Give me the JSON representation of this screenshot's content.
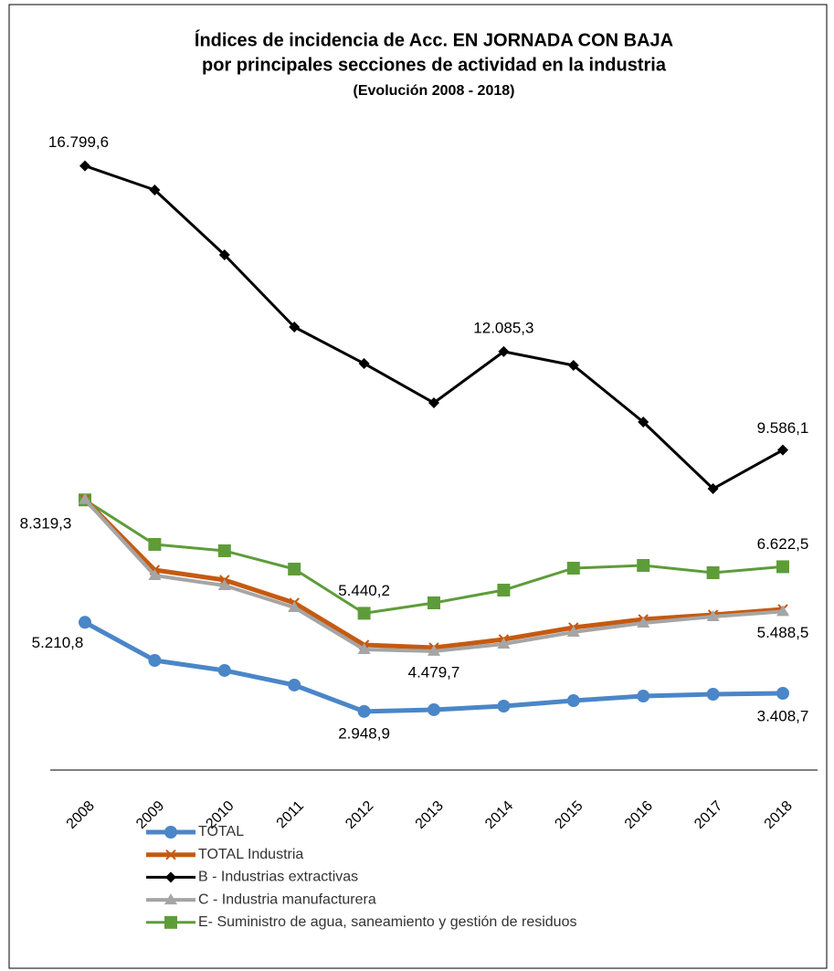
{
  "chart_data": {
    "type": "line",
    "title": "Índices de incidencia de Acc. EN JORNADA CON BAJA",
    "subtitle": "por principales secciones de actividad en la industria",
    "subtitle2": "(Evolución 2008 - 2018)",
    "categories": [
      "2008",
      "2009",
      "2010",
      "2011",
      "2012",
      "2013",
      "2014",
      "2015",
      "2016",
      "2017",
      "2018"
    ],
    "series": [
      {
        "name": "TOTAL",
        "color": "#4a86c8",
        "marker": "circle",
        "values": [
          5210.8,
          4244,
          3989,
          3618,
          2948.9,
          2992,
          3084,
          3223,
          3339,
          3386,
          3408.7
        ],
        "value_labels": [
          "5.210,8",
          null,
          null,
          null,
          "2.948,9",
          null,
          null,
          null,
          null,
          null,
          "3.408,7"
        ]
      },
      {
        "name": "TOTAL Industria",
        "color": "#c55a11",
        "marker": "x",
        "values": [
          8330,
          6540,
          6285,
          5705,
          4638,
          4568,
          4777,
          5079,
          5287,
          5403,
          5542
        ]
      },
      {
        "name": "B - Industrias extractivas",
        "color": "#000000",
        "marker": "diamond",
        "values": [
          16799.6,
          16187,
          14540,
          12708,
          11781,
          10783,
          12085.3,
          11734,
          10296,
          8603,
          9586.1
        ],
        "value_labels": [
          "16.799,6",
          null,
          null,
          null,
          null,
          null,
          "12.085,3",
          null,
          null,
          null,
          "9.586,1"
        ]
      },
      {
        "name": "C - Industria manufacturera",
        "color": "#a5a5a5",
        "marker": "triangle",
        "values": [
          8330,
          6400,
          6145,
          5589,
          4522,
          4479.7,
          4661,
          4963,
          5195,
          5357,
          5488.5
        ],
        "value_labels": [
          null,
          null,
          null,
          null,
          null,
          "4.479,7",
          null,
          null,
          null,
          null,
          "5.488,5"
        ]
      },
      {
        "name": "E- Suministro de agua, saneamiento y gestión de residuos",
        "color": "#5e9c3a",
        "marker": "square",
        "values": [
          8319.3,
          7189,
          7027,
          6563,
          5440.2,
          5705,
          6029,
          6586,
          6656,
          6470,
          6622.5
        ],
        "value_labels": [
          "8.319,3",
          null,
          null,
          null,
          "5.440,2",
          null,
          null,
          null,
          null,
          null,
          "6.622,5"
        ]
      }
    ]
  }
}
